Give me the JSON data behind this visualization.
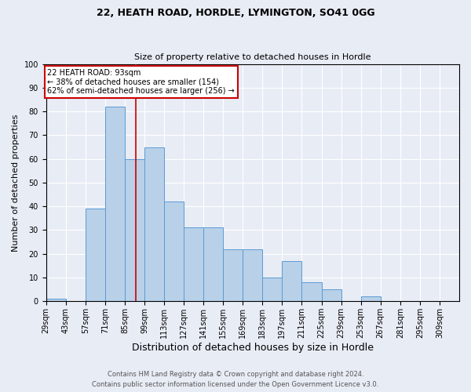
{
  "title": "22, HEATH ROAD, HORDLE, LYMINGTON, SO41 0GG",
  "subtitle": "Size of property relative to detached houses in Hordle",
  "xlabel": "Distribution of detached houses by size in Hordle",
  "ylabel": "Number of detached properties",
  "footer_line1": "Contains HM Land Registry data © Crown copyright and database right 2024.",
  "footer_line2": "Contains public sector information licensed under the Open Government Licence v3.0.",
  "bin_labels": [
    "29sqm",
    "43sqm",
    "57sqm",
    "71sqm",
    "85sqm",
    "99sqm",
    "113sqm",
    "127sqm",
    "141sqm",
    "155sqm",
    "169sqm",
    "183sqm",
    "197sqm",
    "211sqm",
    "225sqm",
    "239sqm",
    "253sqm",
    "267sqm",
    "281sqm",
    "295sqm",
    "309sqm"
  ],
  "bin_left_edges": [
    29,
    43,
    57,
    71,
    85,
    99,
    113,
    127,
    141,
    155,
    169,
    183,
    197,
    211,
    225,
    239,
    253,
    267,
    281,
    295,
    309
  ],
  "bin_width": 14,
  "counts": [
    1,
    0,
    39,
    82,
    60,
    65,
    42,
    31,
    31,
    22,
    22,
    10,
    17,
    8,
    5,
    0,
    2,
    0,
    0,
    0,
    0
  ],
  "bar_color": "#b8d0e8",
  "bar_edge_color": "#5b9bd5",
  "marker_value": 93,
  "marker_color": "#cc0000",
  "annotation_title": "22 HEATH ROAD: 93sqm",
  "annotation_line1": "← 38% of detached houses are smaller (154)",
  "annotation_line2": "62% of semi-detached houses are larger (256) →",
  "annotation_box_facecolor": "#ffffff",
  "annotation_box_edgecolor": "#cc0000",
  "ylim": [
    0,
    100
  ],
  "yticks": [
    0,
    10,
    20,
    30,
    40,
    50,
    60,
    70,
    80,
    90,
    100
  ],
  "background_color": "#e8ecf5",
  "grid_color": "#ffffff",
  "title_fontsize": 9,
  "subtitle_fontsize": 8,
  "xlabel_fontsize": 9,
  "ylabel_fontsize": 8,
  "tick_fontsize": 7,
  "footer_fontsize": 6
}
